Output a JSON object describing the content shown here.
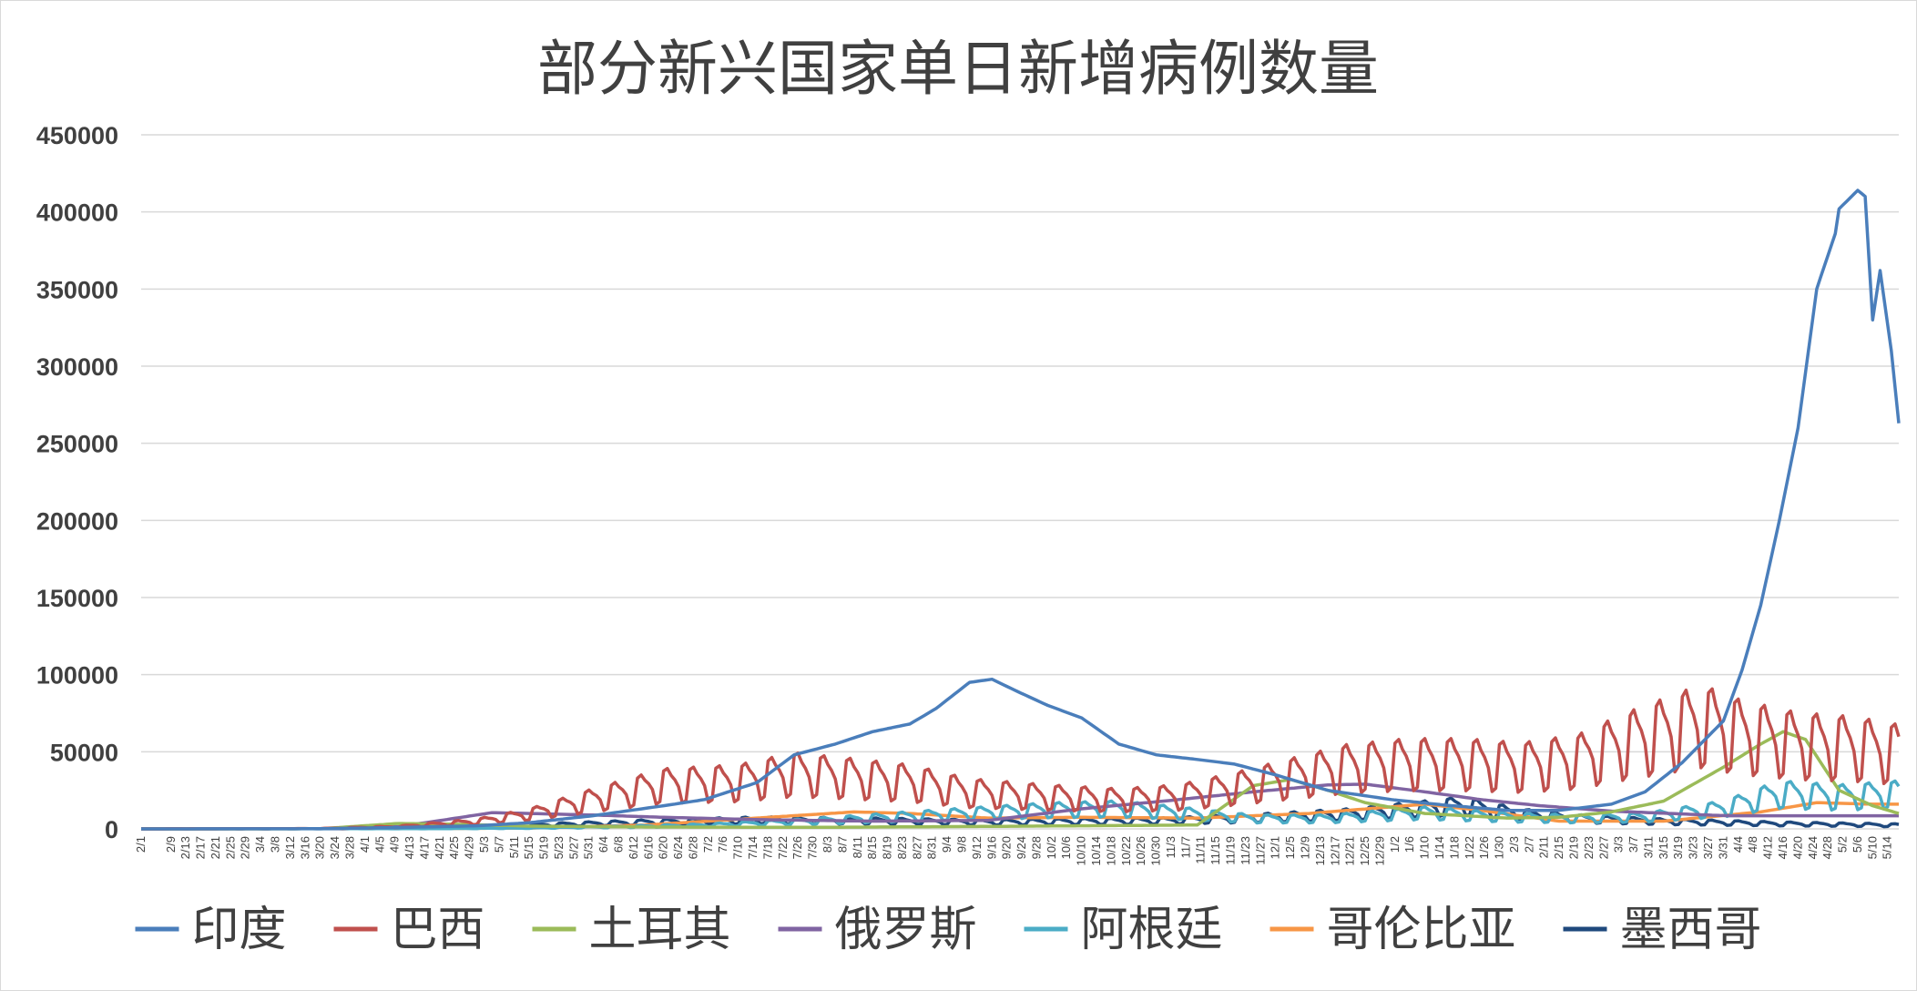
{
  "chart_data": {
    "type": "line",
    "title": "部分新兴国家单日新增病例数量",
    "xlabel": "",
    "ylabel": "",
    "ylim": [
      0,
      450000
    ],
    "yticks": [
      0,
      50000,
      100000,
      150000,
      200000,
      250000,
      300000,
      350000,
      400000,
      450000
    ],
    "grid": true,
    "legend_position": "bottom",
    "x_range": [
      "2020-02-01",
      "2021-05-17"
    ],
    "x_tick_labels": [
      "2/1",
      "2/9",
      "2/13",
      "2/17",
      "2/21",
      "2/25",
      "2/29",
      "3/4",
      "3/8",
      "3/12",
      "3/16",
      "3/20",
      "3/24",
      "3/28",
      "4/1",
      "4/5",
      "4/9",
      "4/13",
      "4/17",
      "4/21",
      "4/25",
      "4/29",
      "5/3",
      "5/7",
      "5/11",
      "5/15",
      "5/19",
      "5/23",
      "5/27",
      "5/31",
      "6/4",
      "6/8",
      "6/12",
      "6/16",
      "6/20",
      "6/24",
      "6/28",
      "7/2",
      "7/6",
      "7/10",
      "7/14",
      "7/18",
      "7/22",
      "7/26",
      "7/30",
      "8/3",
      "8/7",
      "8/11",
      "8/15",
      "8/19",
      "8/23",
      "8/27",
      "8/31",
      "9/4",
      "9/8",
      "9/12",
      "9/16",
      "9/20",
      "9/24",
      "9/28",
      "10/2",
      "10/6",
      "10/10",
      "10/14",
      "10/18",
      "10/22",
      "10/26",
      "10/30",
      "11/3",
      "11/7",
      "11/11",
      "11/15",
      "11/19",
      "11/23",
      "11/27",
      "12/1",
      "12/5",
      "12/9",
      "12/13",
      "12/17",
      "12/21",
      "12/25",
      "12/29",
      "1/2",
      "1/6",
      "1/10",
      "1/14",
      "1/18",
      "1/22",
      "1/26",
      "1/30",
      "2/3",
      "2/7",
      "2/11",
      "2/15",
      "2/19",
      "2/23",
      "2/27",
      "3/3",
      "3/7",
      "3/11",
      "3/15",
      "3/19",
      "3/23",
      "3/27",
      "3/31",
      "4/4",
      "4/8",
      "4/12",
      "4/16",
      "4/20",
      "4/24",
      "4/28",
      "5/2",
      "5/6",
      "5/10",
      "5/14"
    ],
    "series": [
      {
        "name": "印度",
        "color": "#4a7ebb",
        "weekly": false,
        "points": [
          [
            "2020-02-01",
            0
          ],
          [
            "2020-03-20",
            100
          ],
          [
            "2020-04-10",
            900
          ],
          [
            "2020-05-01",
            2000
          ],
          [
            "2020-05-15",
            4000
          ],
          [
            "2020-06-01",
            8500
          ],
          [
            "2020-06-20",
            15000
          ],
          [
            "2020-07-01",
            19000
          ],
          [
            "2020-07-15",
            30000
          ],
          [
            "2020-07-25",
            48000
          ],
          [
            "2020-08-05",
            55000
          ],
          [
            "2020-08-15",
            63000
          ],
          [
            "2020-08-25",
            68000
          ],
          [
            "2020-09-01",
            78000
          ],
          [
            "2020-09-10",
            95000
          ],
          [
            "2020-09-16",
            97000
          ],
          [
            "2020-09-22",
            90000
          ],
          [
            "2020-10-01",
            80000
          ],
          [
            "2020-10-10",
            72000
          ],
          [
            "2020-10-20",
            55000
          ],
          [
            "2020-10-30",
            48000
          ],
          [
            "2020-11-10",
            45000
          ],
          [
            "2020-11-20",
            42000
          ],
          [
            "2020-12-01",
            35000
          ],
          [
            "2020-12-15",
            25000
          ],
          [
            "2021-01-01",
            19000
          ],
          [
            "2021-01-15",
            15500
          ],
          [
            "2021-02-01",
            12000
          ],
          [
            "2021-02-15",
            12000
          ],
          [
            "2021-03-01",
            16000
          ],
          [
            "2021-03-10",
            24000
          ],
          [
            "2021-03-20",
            43000
          ],
          [
            "2021-03-31",
            70000
          ],
          [
            "2021-04-05",
            103000
          ],
          [
            "2021-04-10",
            145000
          ],
          [
            "2021-04-15",
            200000
          ],
          [
            "2021-04-20",
            260000
          ],
          [
            "2021-04-25",
            350000
          ],
          [
            "2021-04-30",
            386000
          ],
          [
            "2021-05-01",
            402000
          ],
          [
            "2021-05-06",
            414000
          ],
          [
            "2021-05-08",
            410000
          ],
          [
            "2021-05-10",
            330000
          ],
          [
            "2021-05-12",
            362000
          ],
          [
            "2021-05-15",
            310000
          ],
          [
            "2021-05-17",
            263000
          ]
        ]
      },
      {
        "name": "巴西",
        "color": "#c0504d",
        "weekly": true,
        "points": [
          [
            "2020-02-01",
            0
          ],
          [
            "2020-03-20",
            200
          ],
          [
            "2020-04-10",
            1500
          ],
          [
            "2020-05-01",
            5000
          ],
          [
            "2020-05-15",
            10000
          ],
          [
            "2020-06-01",
            20000
          ],
          [
            "2020-06-20",
            30000
          ],
          [
            "2020-07-10",
            32000
          ],
          [
            "2020-07-25",
            38000
          ],
          [
            "2020-08-10",
            35000
          ],
          [
            "2020-08-25",
            32000
          ],
          [
            "2020-09-10",
            25000
          ],
          [
            "2020-10-01",
            22000
          ],
          [
            "2020-10-20",
            20000
          ],
          [
            "2020-11-05",
            22000
          ],
          [
            "2020-11-20",
            28000
          ],
          [
            "2020-12-05",
            35000
          ],
          [
            "2020-12-20",
            42000
          ],
          [
            "2021-01-05",
            45000
          ],
          [
            "2021-01-20",
            45000
          ],
          [
            "2021-02-05",
            43000
          ],
          [
            "2021-02-20",
            47000
          ],
          [
            "2021-03-05",
            58000
          ],
          [
            "2021-03-25",
            72000
          ],
          [
            "2021-04-05",
            64000
          ],
          [
            "2021-04-20",
            58000
          ],
          [
            "2021-05-05",
            56000
          ],
          [
            "2021-05-17",
            52000
          ]
        ]
      },
      {
        "name": "土耳其",
        "color": "#9bbb59",
        "weekly": false,
        "points": [
          [
            "2020-02-01",
            0
          ],
          [
            "2020-03-20",
            100
          ],
          [
            "2020-04-10",
            3500
          ],
          [
            "2020-04-25",
            3000
          ],
          [
            "2020-05-15",
            1800
          ],
          [
            "2020-06-15",
            1200
          ],
          [
            "2020-08-01",
            1000
          ],
          [
            "2020-09-15",
            1600
          ],
          [
            "2020-11-10",
            2500
          ],
          [
            "2020-11-25",
            28000
          ],
          [
            "2020-12-05",
            32000
          ],
          [
            "2020-12-15",
            25000
          ],
          [
            "2020-12-25",
            17000
          ],
          [
            "2021-01-10",
            10000
          ],
          [
            "2021-02-01",
            7000
          ],
          [
            "2021-02-15",
            7500
          ],
          [
            "2021-03-01",
            11000
          ],
          [
            "2021-03-15",
            18000
          ],
          [
            "2021-03-31",
            40000
          ],
          [
            "2021-04-10",
            55000
          ],
          [
            "2021-04-16",
            63000
          ],
          [
            "2021-04-22",
            58000
          ],
          [
            "2021-05-01",
            25000
          ],
          [
            "2021-05-10",
            15000
          ],
          [
            "2021-05-17",
            10000
          ]
        ]
      },
      {
        "name": "俄罗斯",
        "color": "#8064a2",
        "weekly": false,
        "points": [
          [
            "2020-02-01",
            0
          ],
          [
            "2020-03-25",
            200
          ],
          [
            "2020-04-10",
            1500
          ],
          [
            "2020-04-20",
            5000
          ],
          [
            "2020-05-05",
            10500
          ],
          [
            "2020-05-15",
            10000
          ],
          [
            "2020-06-01",
            9000
          ],
          [
            "2020-06-20",
            7500
          ],
          [
            "2020-07-15",
            6000
          ],
          [
            "2020-08-15",
            5000
          ],
          [
            "2020-09-15",
            5500
          ],
          [
            "2020-10-10",
            13000
          ],
          [
            "2020-11-01",
            18000
          ],
          [
            "2020-11-25",
            24000
          ],
          [
            "2020-12-15",
            28500
          ],
          [
            "2020-12-25",
            29000
          ],
          [
            "2021-01-10",
            24000
          ],
          [
            "2021-01-25",
            19000
          ],
          [
            "2021-02-10",
            15000
          ],
          [
            "2021-03-01",
            11500
          ],
          [
            "2021-04-01",
            8500
          ],
          [
            "2021-05-17",
            8500
          ]
        ]
      },
      {
        "name": "阿根廷",
        "color": "#4bacc6",
        "weekly": true,
        "points": [
          [
            "2020-02-01",
            0
          ],
          [
            "2020-04-15",
            100
          ],
          [
            "2020-05-15",
            500
          ],
          [
            "2020-06-10",
            1500
          ],
          [
            "2020-07-01",
            2500
          ],
          [
            "2020-08-01",
            5500
          ],
          [
            "2020-09-01",
            9500
          ],
          [
            "2020-10-01",
            13000
          ],
          [
            "2020-10-20",
            14000
          ],
          [
            "2020-11-05",
            11000
          ],
          [
            "2020-11-25",
            7000
          ],
          [
            "2020-12-15",
            7000
          ],
          [
            "2021-01-10",
            11000
          ],
          [
            "2021-02-01",
            8000
          ],
          [
            "2021-02-20",
            7000
          ],
          [
            "2021-03-10",
            8000
          ],
          [
            "2021-03-31",
            14000
          ],
          [
            "2021-04-15",
            24000
          ],
          [
            "2021-05-01",
            22000
          ],
          [
            "2021-05-17",
            24000
          ]
        ]
      },
      {
        "name": "哥伦比亚",
        "color": "#f79646",
        "weekly": false,
        "points": [
          [
            "2020-02-01",
            0
          ],
          [
            "2020-04-15",
            200
          ],
          [
            "2020-05-15",
            500
          ],
          [
            "2020-06-15",
            2500
          ],
          [
            "2020-07-15",
            7000
          ],
          [
            "2020-08-10",
            11000
          ],
          [
            "2020-08-25",
            10000
          ],
          [
            "2020-09-15",
            7000
          ],
          [
            "2020-10-10",
            7500
          ],
          [
            "2020-11-10",
            7000
          ],
          [
            "2020-12-10",
            10000
          ],
          [
            "2021-01-10",
            16000
          ],
          [
            "2021-01-25",
            12000
          ],
          [
            "2021-02-15",
            5000
          ],
          [
            "2021-03-15",
            5000
          ],
          [
            "2021-04-10",
            11000
          ],
          [
            "2021-04-25",
            17000
          ],
          [
            "2021-05-10",
            16000
          ],
          [
            "2021-05-17",
            16000
          ]
        ]
      },
      {
        "name": "墨西哥",
        "color": "#1f497d",
        "weekly": true,
        "points": [
          [
            "2020-02-01",
            0
          ],
          [
            "2020-04-10",
            200
          ],
          [
            "2020-05-01",
            1500
          ],
          [
            "2020-05-20",
            2800
          ],
          [
            "2020-06-15",
            4500
          ],
          [
            "2020-07-15",
            6000
          ],
          [
            "2020-08-15",
            5500
          ],
          [
            "2020-09-15",
            4500
          ],
          [
            "2020-10-05",
            5000
          ],
          [
            "2020-11-01",
            5500
          ],
          [
            "2020-12-01",
            8000
          ],
          [
            "2020-12-20",
            10000
          ],
          [
            "2021-01-10",
            14000
          ],
          [
            "2021-01-20",
            16000
          ],
          [
            "2021-02-05",
            10000
          ],
          [
            "2021-02-20",
            7000
          ],
          [
            "2021-03-15",
            5000
          ],
          [
            "2021-04-15",
            3500
          ],
          [
            "2021-05-17",
            2500
          ]
        ]
      }
    ]
  }
}
